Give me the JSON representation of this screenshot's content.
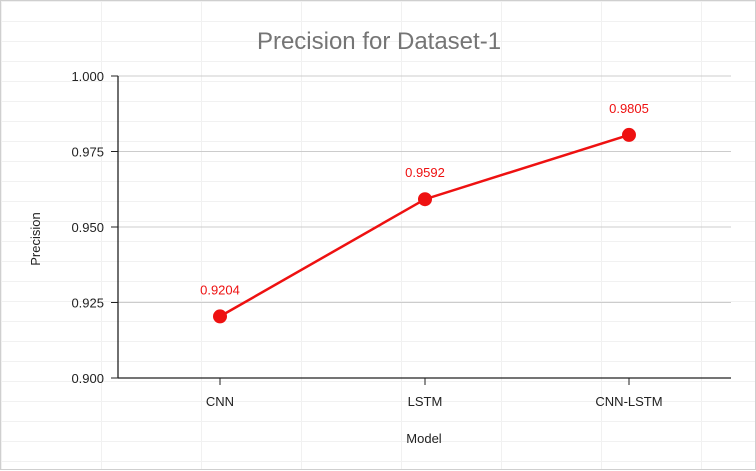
{
  "chart_data": {
    "type": "line",
    "title": "Precision for Dataset-1",
    "xlabel": "Model",
    "ylabel": "Precision",
    "categories": [
      "CNN",
      "LSTM",
      "CNN-LSTM"
    ],
    "series": [
      {
        "values": [
          0.9204,
          0.9592,
          0.9805
        ],
        "data_labels": [
          "0.9204",
          "0.9592",
          "0.9805"
        ],
        "color": "#ee1111"
      }
    ],
    "ylim": [
      0.9,
      1.0
    ],
    "yticks": [
      0.9,
      0.925,
      0.95,
      0.975,
      1.0
    ],
    "ytick_labels": [
      "0.900",
      "0.925",
      "0.950",
      "0.975",
      "1.000"
    ],
    "grid": true,
    "grid_color": "#cccccc",
    "axis_color": "#222222"
  }
}
